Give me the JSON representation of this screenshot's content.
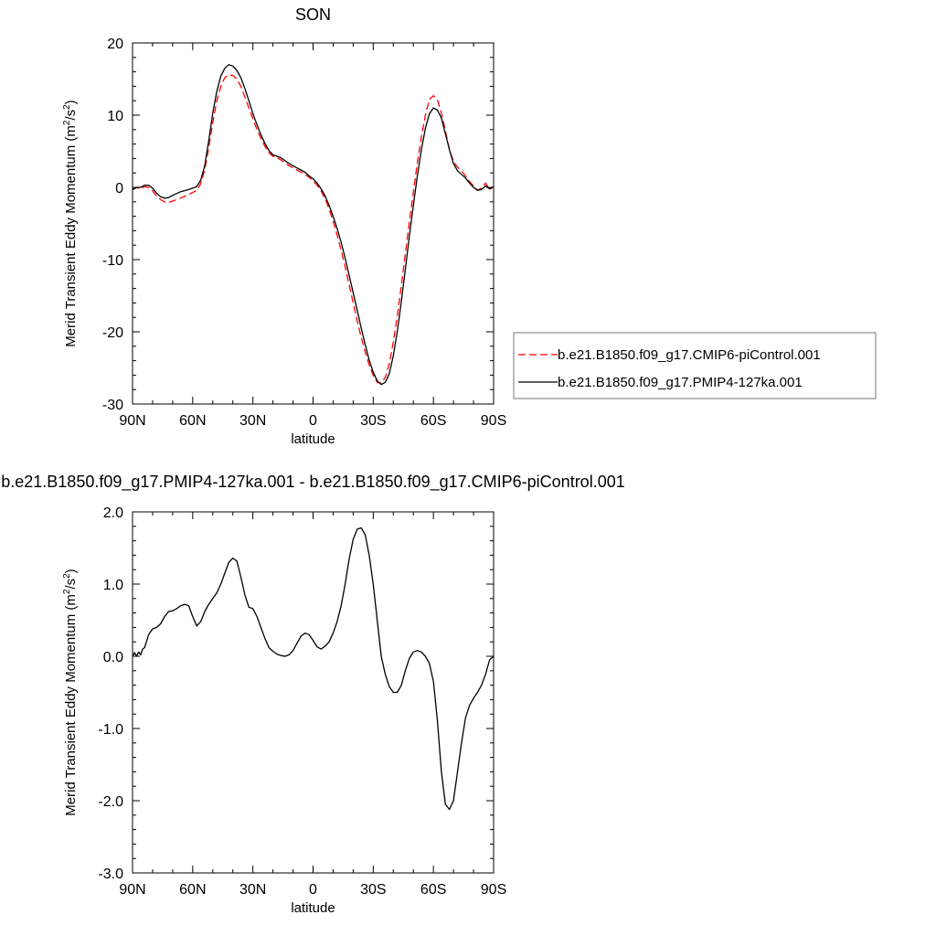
{
  "chart_data": [
    {
      "type": "line",
      "title": "SON",
      "xlabel": "latitude",
      "ylabel": "Merid Transient Eddy Momentum (m²/s²)",
      "ylabel_main": "Merid Transient Eddy Momentum (m",
      "ylabel_mid": "/s",
      "ylabel_end": ")",
      "ylabel_sup": "2",
      "xlim": [
        90,
        -90
      ],
      "ylim": [
        -30,
        20
      ],
      "xticks": [
        {
          "value": 90,
          "label": "90N"
        },
        {
          "value": 60,
          "label": "60N"
        },
        {
          "value": 30,
          "label": "30N"
        },
        {
          "value": 0,
          "label": "0"
        },
        {
          "value": -30,
          "label": "30S"
        },
        {
          "value": -60,
          "label": "60S"
        },
        {
          "value": -90,
          "label": "90S"
        }
      ],
      "yticks": [
        {
          "value": 20,
          "label": "20"
        },
        {
          "value": 10,
          "label": "10"
        },
        {
          "value": 0,
          "label": "0"
        },
        {
          "value": -10,
          "label": "-10"
        },
        {
          "value": -20,
          "label": "-20"
        },
        {
          "value": -30,
          "label": "-30"
        }
      ],
      "legend_position": "right",
      "series": [
        {
          "name": "b.e21.B1850.f09_g17.CMIP6-piControl.001",
          "color": "#ff0000",
          "dash": "dashed",
          "x": [
            90,
            88,
            86,
            84,
            82,
            80,
            78,
            76,
            74,
            72,
            70,
            66,
            62,
            58,
            56,
            54,
            52,
            50,
            48,
            46,
            44,
            42,
            40,
            38,
            36,
            34,
            32,
            30,
            28,
            26,
            24,
            22,
            20,
            18,
            16,
            14,
            12,
            10,
            8,
            6,
            4,
            2,
            0,
            -2,
            -4,
            -6,
            -8,
            -10,
            -12,
            -14,
            -16,
            -18,
            -20,
            -22,
            -24,
            -26,
            -28,
            -30,
            -32,
            -34,
            -36,
            -38,
            -40,
            -42,
            -44,
            -46,
            -48,
            -50,
            -52,
            -54,
            -56,
            -58,
            -60,
            -62,
            -64,
            -66,
            -68,
            -70,
            -72,
            -74,
            -76,
            -78,
            -80,
            -82,
            -84,
            -86,
            -88,
            -90
          ],
          "y": [
            -0.3,
            0.0,
            -0.2,
            0.1,
            0.0,
            -0.5,
            -1.2,
            -1.7,
            -2.0,
            -2.1,
            -1.9,
            -1.5,
            -1.0,
            -0.4,
            0.5,
            2.5,
            5.5,
            9.0,
            12.0,
            14.0,
            15.2,
            15.6,
            15.5,
            15.0,
            14.0,
            12.5,
            11.0,
            9.5,
            8.0,
            6.8,
            5.7,
            4.8,
            4.3,
            4.1,
            3.8,
            3.4,
            3.0,
            2.7,
            2.4,
            2.1,
            1.8,
            1.4,
            0.9,
            0.3,
            -0.5,
            -1.6,
            -3.0,
            -4.7,
            -6.6,
            -8.7,
            -11.0,
            -13.5,
            -16.0,
            -18.5,
            -20.8,
            -22.8,
            -24.6,
            -26.0,
            -27.0,
            -27.1,
            -26.3,
            -24.4,
            -21.4,
            -17.8,
            -13.6,
            -9.2,
            -4.8,
            -0.7,
            3.4,
            7.0,
            10.0,
            12.2,
            12.7,
            12.1,
            10.3,
            7.8,
            5.2,
            3.6,
            2.8,
            2.3,
            1.6,
            0.8,
            0.2,
            -0.4,
            -0.1,
            0.6,
            -0.3,
            0.1
          ]
        },
        {
          "name": "b.e21.B1850.f09_g17.PMIP4-127ka.001",
          "color": "#000000",
          "dash": "solid",
          "x": [
            90,
            88,
            86,
            84,
            82,
            80,
            78,
            76,
            74,
            72,
            70,
            66,
            62,
            58,
            56,
            54,
            52,
            50,
            48,
            46,
            44,
            42,
            40,
            38,
            36,
            34,
            32,
            30,
            28,
            26,
            24,
            22,
            20,
            18,
            16,
            14,
            12,
            10,
            8,
            6,
            4,
            2,
            0,
            -2,
            -4,
            -6,
            -8,
            -10,
            -12,
            -14,
            -16,
            -18,
            -20,
            -22,
            -24,
            -26,
            -28,
            -30,
            -32,
            -34,
            -36,
            -38,
            -40,
            -42,
            -44,
            -46,
            -48,
            -50,
            -52,
            -54,
            -56,
            -58,
            -60,
            -62,
            -64,
            -66,
            -68,
            -70,
            -72,
            -74,
            -76,
            -78,
            -80,
            -82,
            -84,
            -86,
            -88,
            -90
          ],
          "y": [
            -0.3,
            0.0,
            0.0,
            0.3,
            0.3,
            -0.1,
            -0.8,
            -1.3,
            -1.5,
            -1.4,
            -1.1,
            -0.6,
            -0.3,
            0.1,
            1.0,
            3.0,
            6.5,
            10.3,
            13.3,
            15.4,
            16.5,
            17.0,
            16.8,
            16.2,
            15.2,
            13.7,
            12.0,
            10.2,
            8.7,
            7.3,
            6.1,
            5.1,
            4.5,
            4.3,
            4.1,
            3.7,
            3.3,
            3.0,
            2.7,
            2.4,
            2.1,
            1.6,
            1.2,
            0.6,
            -0.2,
            -1.2,
            -2.5,
            -4.0,
            -5.7,
            -7.6,
            -9.8,
            -12.2,
            -14.6,
            -17.0,
            -19.5,
            -21.8,
            -23.9,
            -25.6,
            -26.8,
            -27.3,
            -27.0,
            -25.8,
            -23.3,
            -19.9,
            -15.8,
            -11.4,
            -6.8,
            -2.5,
            1.6,
            5.2,
            8.2,
            10.2,
            11.0,
            10.7,
            9.6,
            7.4,
            5.2,
            3.3,
            2.3,
            1.8,
            1.3,
            0.6,
            0.0,
            -0.4,
            -0.3,
            0.2,
            -0.2,
            0.1
          ]
        }
      ]
    },
    {
      "type": "line",
      "title": "b.e21.B1850.f09_g17.PMIP4-127ka.001 - b.e21.B1850.f09_g17.CMIP6-piControl.001",
      "xlabel": "latitude",
      "ylabel": "Merid Transient Eddy Momentum (m²/s²)",
      "ylabel_main": "Merid Transient Eddy Momentum (m",
      "ylabel_mid": "/s",
      "ylabel_end": ")",
      "ylabel_sup": "2",
      "xlim": [
        90,
        -90
      ],
      "ylim": [
        -3.0,
        2.0
      ],
      "xticks": [
        {
          "value": 90,
          "label": "90N"
        },
        {
          "value": 60,
          "label": "60N"
        },
        {
          "value": 30,
          "label": "30N"
        },
        {
          "value": 0,
          "label": "0"
        },
        {
          "value": -30,
          "label": "30S"
        },
        {
          "value": -60,
          "label": "60S"
        },
        {
          "value": -90,
          "label": "90S"
        }
      ],
      "yticks": [
        {
          "value": 2.0,
          "label": "2.0"
        },
        {
          "value": 1.0,
          "label": "1.0"
        },
        {
          "value": 0.0,
          "label": "0.0"
        },
        {
          "value": -1.0,
          "label": "-1.0"
        },
        {
          "value": -2.0,
          "label": "-2.0"
        },
        {
          "value": -3.0,
          "label": "-3.0"
        }
      ],
      "series": [
        {
          "color": "#000000",
          "dash": "solid",
          "x": [
            90,
            89,
            88,
            87,
            86,
            85,
            84,
            82,
            80,
            78,
            76,
            74,
            72,
            70,
            68,
            66,
            64,
            62,
            60,
            58,
            56,
            54,
            52,
            50,
            48,
            46,
            44,
            42,
            40,
            38,
            36,
            34,
            32,
            30,
            28,
            26,
            24,
            22,
            20,
            18,
            16,
            14,
            12,
            10,
            8,
            6,
            4,
            2,
            0,
            -2,
            -4,
            -6,
            -8,
            -10,
            -12,
            -14,
            -16,
            -18,
            -20,
            -22,
            -24,
            -26,
            -28,
            -30,
            -32,
            -34,
            -36,
            -38,
            -40,
            -42,
            -44,
            -46,
            -48,
            -50,
            -52,
            -54,
            -56,
            -58,
            -60,
            -62,
            -64,
            -66,
            -68,
            -70,
            -72,
            -74,
            -76,
            -78,
            -80,
            -82,
            -84,
            -86,
            -88,
            -90
          ],
          "y": [
            0.0,
            0.05,
            0.0,
            0.06,
            0.02,
            0.1,
            0.12,
            0.3,
            0.38,
            0.4,
            0.45,
            0.55,
            0.62,
            0.63,
            0.66,
            0.7,
            0.72,
            0.7,
            0.55,
            0.42,
            0.48,
            0.62,
            0.72,
            0.8,
            0.88,
            1.0,
            1.15,
            1.3,
            1.36,
            1.32,
            1.1,
            0.85,
            0.68,
            0.66,
            0.55,
            0.4,
            0.25,
            0.12,
            0.07,
            0.03,
            0.01,
            0.0,
            0.02,
            0.08,
            0.18,
            0.28,
            0.32,
            0.3,
            0.22,
            0.13,
            0.1,
            0.14,
            0.2,
            0.32,
            0.48,
            0.7,
            1.0,
            1.35,
            1.62,
            1.76,
            1.78,
            1.68,
            1.4,
            1.0,
            0.5,
            0.0,
            -0.25,
            -0.42,
            -0.5,
            -0.5,
            -0.4,
            -0.2,
            -0.03,
            0.06,
            0.08,
            0.06,
            0.0,
            -0.1,
            -0.35,
            -0.9,
            -1.6,
            -2.05,
            -2.12,
            -2.0,
            -1.6,
            -1.2,
            -0.85,
            -0.68,
            -0.58,
            -0.5,
            -0.4,
            -0.25,
            -0.05,
            0.0
          ]
        }
      ]
    }
  ]
}
